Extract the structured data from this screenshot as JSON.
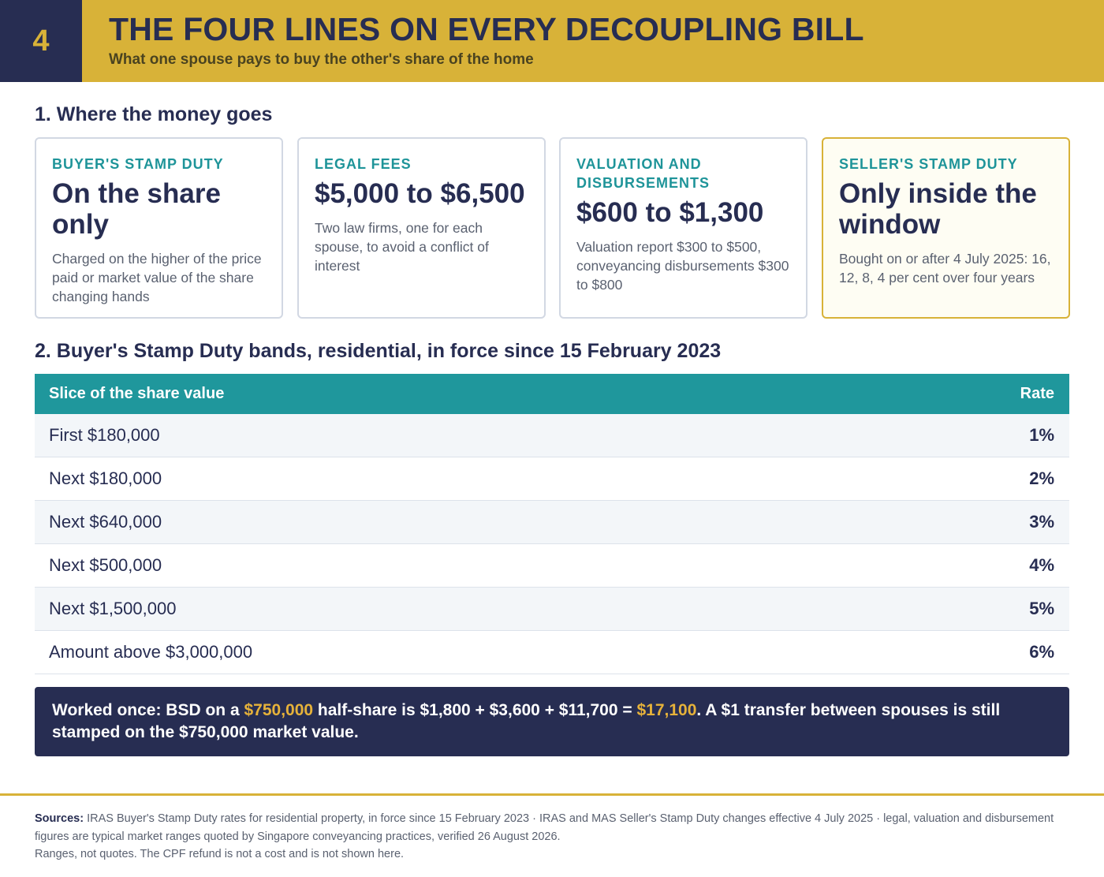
{
  "header": {
    "number": "4",
    "title": "THE FOUR LINES ON EVERY DECOUPLING BILL",
    "subtitle": "What one spouse pays to buy the other's share of the home"
  },
  "section1": {
    "title": "1. Where the money goes",
    "cards": [
      {
        "label": "BUYER'S STAMP DUTY",
        "value": "On the share only",
        "desc": "Charged on the higher of the price paid or market value of the share changing hands"
      },
      {
        "label": "LEGAL FEES",
        "value": "$5,000 to $6,500",
        "desc": "Two law firms, one for each spouse, to avoid a conflict of interest"
      },
      {
        "label": "VALUATION AND DISBURSEMENTS",
        "value": "$600 to $1,300",
        "desc": "Valuation report $300 to $500, conveyancing disbursements $300 to $800"
      },
      {
        "label": "SELLER'S STAMP DUTY",
        "value": "Only inside the window",
        "desc": "Bought on or after 4 July 2025: 16, 12, 8, 4 per cent over four years"
      }
    ]
  },
  "section2": {
    "title": "2. Buyer's Stamp Duty bands, residential, in force since 15 February 2023",
    "columns": {
      "slice": "Slice of the share value",
      "rate": "Rate"
    },
    "rows": [
      {
        "slice": "First $180,000",
        "rate": "1%"
      },
      {
        "slice": "Next $180,000",
        "rate": "2%"
      },
      {
        "slice": "Next $640,000",
        "rate": "3%"
      },
      {
        "slice": "Next $500,000",
        "rate": "4%"
      },
      {
        "slice": "Next $1,500,000",
        "rate": "5%"
      },
      {
        "slice": "Amount above $3,000,000",
        "rate": "6%"
      }
    ]
  },
  "callout": {
    "part1": "Worked once: BSD on a ",
    "value1": "$750,000",
    "part2": " half-share is $1,800 + $3,600 + $11,700 = ",
    "value2": "$17,100",
    "part3": ". A $1 transfer between spouses is still stamped on the $750,000 market value."
  },
  "footer": {
    "sources_label": "Sources:",
    "sources_text": " IRAS Buyer's Stamp Duty rates for residential property, in force since 15 February 2023 · IRAS and MAS Seller's Stamp Duty changes effective 4 July 2025 · legal, valuation and disbursement figures are typical market ranges quoted by Singapore conveyancing practices, verified 26 August 2026.",
    "note": "Ranges, not quotes. The CPF refund is not a cost and is not shown here."
  },
  "colors": {
    "navy": "#272d52",
    "gold": "#d8b238",
    "teal": "#1f979c"
  }
}
